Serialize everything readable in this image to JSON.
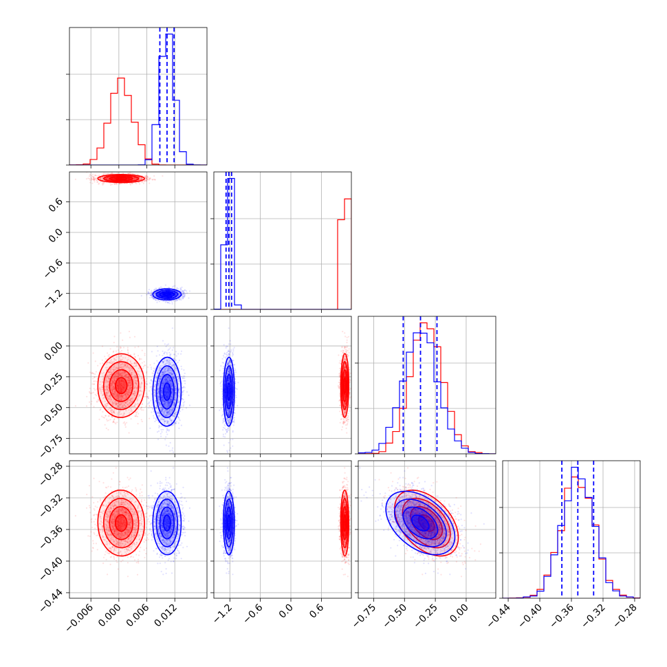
{
  "chart_data": {
    "type": "corner",
    "title": "",
    "parameters": [
      "",
      "",
      "",
      ""
    ],
    "colors": {
      "red": "#ff0000",
      "blue": "#0000ff"
    },
    "grid": true,
    "legend": "none",
    "ranges": [
      [
        -0.0106,
        0.0189
      ],
      [
        -1.515,
        1.19
      ],
      [
        -0.875,
        0.24
      ],
      [
        -0.447,
        -0.273
      ]
    ],
    "axis_ticks": [
      {
        "values": [
          -0.006,
          0.0,
          0.006,
          0.012
        ],
        "labels": [
          "−0.006",
          "0.000",
          "0.006",
          "0.012"
        ]
      },
      {
        "values": [
          -1.2,
          -0.6,
          0.0,
          0.6
        ],
        "labels": [
          "−1.2",
          "−0.6",
          "0.0",
          "0.6"
        ]
      },
      {
        "values": [
          -0.75,
          -0.5,
          -0.25,
          0.0
        ],
        "labels": [
          "−0.75",
          "−0.50",
          "−0.25",
          "0.00"
        ]
      },
      {
        "values": [
          -0.44,
          -0.4,
          -0.36,
          -0.32,
          -0.28
        ],
        "labels": [
          "−0.44",
          "−0.40",
          "−0.36",
          "−0.32",
          "−0.28"
        ]
      }
    ],
    "distributions": [
      {
        "color": "red",
        "mean": [
          0.0005,
          1.06,
          -0.32,
          -0.352
        ],
        "sd": [
          0.0025,
          0.04,
          0.13,
          0.021
        ],
        "correlation_2_3": -0.45
      },
      {
        "color": "blue",
        "mean": [
          0.0103,
          -1.22,
          -0.37,
          -0.352
        ],
        "sd": [
          0.0015,
          0.055,
          0.14,
          0.02
        ],
        "correlation_2_3": -0.45
      }
    ],
    "quantile_lines": {
      "color": "blue",
      "quantiles": [
        0.16,
        0.5,
        0.84
      ]
    }
  }
}
